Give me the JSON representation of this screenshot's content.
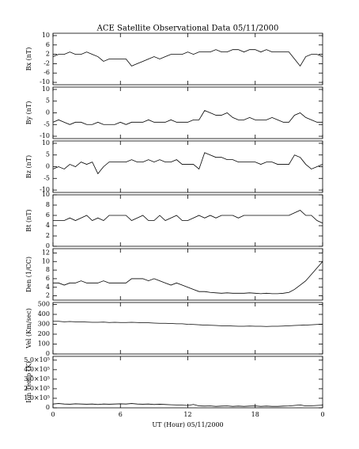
{
  "chart_data": [
    {
      "type": "line",
      "title": "ACE Satellite Observational Data   05/11/2000",
      "ylabel": "Bx (nT)",
      "color": "#000000",
      "x": [
        0,
        0.5,
        1,
        1.5,
        2,
        2.5,
        3,
        3.5,
        4,
        4.5,
        5,
        5.5,
        6,
        6.5,
        7,
        7.5,
        8,
        8.5,
        9,
        9.5,
        10,
        10.5,
        11,
        11.5,
        12,
        12.5,
        13,
        13.5,
        14,
        14.5,
        15,
        15.5,
        16,
        16.5,
        17,
        17.5,
        18,
        18.5,
        19,
        19.5,
        20,
        20.5,
        21,
        21.5,
        22,
        22.5,
        23,
        23.5,
        24
      ],
      "values": [
        1,
        2,
        2,
        3,
        2,
        2,
        3,
        2,
        1,
        -1,
        0,
        0,
        0,
        0,
        -3,
        -2,
        -1,
        0,
        1,
        0,
        1,
        2,
        2,
        2,
        3,
        2,
        3,
        3,
        3,
        4,
        3,
        3,
        4,
        4,
        3,
        4,
        4,
        3,
        4,
        3,
        3,
        3,
        3,
        0,
        -3,
        1,
        2,
        2,
        1
      ],
      "xlim": [
        0,
        24
      ],
      "xticks": [
        0,
        6,
        12,
        18,
        24
      ],
      "ylim": [
        -11,
        11
      ],
      "yticks": [
        -10,
        -6,
        -2,
        2,
        6,
        10
      ]
    },
    {
      "type": "line",
      "ylabel": "By (nT)",
      "color": "#000000",
      "x": [
        0,
        0.5,
        1,
        1.5,
        2,
        2.5,
        3,
        3.5,
        4,
        4.5,
        5,
        5.5,
        6,
        6.5,
        7,
        7.5,
        8,
        8.5,
        9,
        9.5,
        10,
        10.5,
        11,
        11.5,
        12,
        12.5,
        13,
        13.5,
        14,
        14.5,
        15,
        15.5,
        16,
        16.5,
        17,
        17.5,
        18,
        18.5,
        19,
        19.5,
        20,
        20.5,
        21,
        21.5,
        22,
        22.5,
        23,
        23.5,
        24
      ],
      "values": [
        -4,
        -3,
        -4,
        -5,
        -4,
        -4,
        -5,
        -5,
        -4,
        -5,
        -5,
        -5,
        -4,
        -5,
        -4,
        -4,
        -4,
        -3,
        -4,
        -4,
        -4,
        -3,
        -4,
        -4,
        -4,
        -3,
        -3,
        1,
        0,
        -1,
        -1,
        0,
        -2,
        -3,
        -3,
        -2,
        -3,
        -3,
        -3,
        -2,
        -3,
        -4,
        -4,
        -1,
        0,
        -2,
        -3,
        -4,
        -4
      ],
      "xlim": [
        0,
        24
      ],
      "xticks": [
        0,
        6,
        12,
        18,
        24
      ],
      "ylim": [
        -11,
        11
      ],
      "yticks": [
        -10,
        -5,
        0,
        5,
        10
      ]
    },
    {
      "type": "line",
      "ylabel": "Bz (nT)",
      "color": "#000000",
      "x": [
        0,
        0.5,
        1,
        1.5,
        2,
        2.5,
        3,
        3.5,
        4,
        4.5,
        5,
        5.5,
        6,
        6.5,
        7,
        7.5,
        8,
        8.5,
        9,
        9.5,
        10,
        10.5,
        11,
        11.5,
        12,
        12.5,
        13,
        13.5,
        14,
        14.5,
        15,
        15.5,
        16,
        16.5,
        17,
        17.5,
        18,
        18.5,
        19,
        19.5,
        20,
        20.5,
        21,
        21.5,
        22,
        22.5,
        23,
        23.5,
        24
      ],
      "values": [
        -1,
        0,
        -1,
        1,
        0,
        2,
        1,
        2,
        -3,
        0,
        2,
        2,
        2,
        2,
        3,
        2,
        2,
        3,
        2,
        3,
        2,
        2,
        3,
        1,
        1,
        1,
        -1,
        6,
        5,
        4,
        4,
        3,
        3,
        2,
        2,
        2,
        2,
        1,
        2,
        2,
        1,
        1,
        1,
        5,
        4,
        1,
        -1,
        0,
        1
      ],
      "xlim": [
        0,
        24
      ],
      "xticks": [
        0,
        6,
        12,
        18,
        24
      ],
      "ylim": [
        -11,
        11
      ],
      "yticks": [
        -10,
        -5,
        0,
        5,
        10
      ]
    },
    {
      "type": "line",
      "ylabel": "Bt (nT)",
      "color": "#000000",
      "x": [
        0,
        0.5,
        1,
        1.5,
        2,
        2.5,
        3,
        3.5,
        4,
        4.5,
        5,
        5.5,
        6,
        6.5,
        7,
        7.5,
        8,
        8.5,
        9,
        9.5,
        10,
        10.5,
        11,
        11.5,
        12,
        12.5,
        13,
        13.5,
        14,
        14.5,
        15,
        15.5,
        16,
        16.5,
        17,
        17.5,
        18,
        18.5,
        19,
        19.5,
        20,
        20.5,
        21,
        21.5,
        22,
        22.5,
        23,
        23.5,
        24
      ],
      "values": [
        5,
        5,
        5,
        5.5,
        5,
        5.5,
        6,
        5,
        5.5,
        5,
        6,
        6,
        6,
        6,
        5,
        5.5,
        6,
        5,
        5,
        6,
        5,
        5.5,
        6,
        5,
        5,
        5.5,
        6,
        5.5,
        6,
        5.5,
        6,
        6,
        6,
        5.5,
        6,
        6,
        6,
        6,
        6,
        6,
        6,
        6,
        6,
        6.5,
        7,
        6,
        6,
        5,
        4.5
      ],
      "xlim": [
        0,
        24
      ],
      "xticks": [
        0,
        6,
        12,
        18,
        24
      ],
      "ylim": [
        0,
        10
      ],
      "yticks": [
        0,
        2,
        4,
        6,
        8,
        10
      ]
    },
    {
      "type": "line",
      "ylabel": "Den (1/CC)",
      "color": "#000000",
      "x": [
        0,
        0.5,
        1,
        1.5,
        2,
        2.5,
        3,
        3.5,
        4,
        4.5,
        5,
        5.5,
        6,
        6.5,
        7,
        7.5,
        8,
        8.5,
        9,
        9.5,
        10,
        10.5,
        11,
        11.5,
        12,
        12.5,
        13,
        13.5,
        14,
        14.5,
        15,
        15.5,
        16,
        16.5,
        17,
        17.5,
        18,
        18.5,
        19,
        19.5,
        20,
        20.5,
        21,
        21.5,
        22,
        22.5,
        23,
        23.5,
        24
      ],
      "values": [
        5,
        5,
        4.5,
        5,
        5,
        5.5,
        5,
        5,
        5,
        5.5,
        5,
        5,
        5,
        5,
        6,
        6,
        6,
        5.5,
        6,
        5.5,
        5,
        4.5,
        5,
        4.5,
        4,
        3.5,
        3,
        3,
        2.8,
        2.7,
        2.6,
        2.7,
        2.6,
        2.6,
        2.6,
        2.7,
        2.6,
        2.5,
        2.6,
        2.5,
        2.5,
        2.6,
        2.8,
        3.5,
        4.5,
        5.5,
        7,
        8.5,
        10
      ],
      "xlim": [
        0,
        24
      ],
      "xticks": [
        0,
        6,
        12,
        18,
        24
      ],
      "ylim": [
        1,
        13
      ],
      "yticks": [
        2,
        4,
        6,
        8,
        10,
        12
      ]
    },
    {
      "type": "line",
      "ylabel": "Vel (Km/sec)",
      "color": "#000000",
      "x": [
        0,
        0.5,
        1,
        1.5,
        2,
        2.5,
        3,
        3.5,
        4,
        4.5,
        5,
        5.5,
        6,
        6.5,
        7,
        7.5,
        8,
        8.5,
        9,
        9.5,
        10,
        10.5,
        11,
        11.5,
        12,
        12.5,
        13,
        13.5,
        14,
        14.5,
        15,
        15.5,
        16,
        16.5,
        17,
        17.5,
        18,
        18.5,
        19,
        19.5,
        20,
        20.5,
        21,
        21.5,
        22,
        22.5,
        23,
        23.5,
        24
      ],
      "values": [
        330,
        330,
        325,
        328,
        325,
        325,
        322,
        320,
        320,
        322,
        318,
        320,
        318,
        318,
        320,
        318,
        315,
        315,
        312,
        310,
        310,
        308,
        305,
        305,
        300,
        298,
        295,
        292,
        290,
        288,
        285,
        285,
        282,
        280,
        280,
        282,
        280,
        280,
        278,
        280,
        280,
        282,
        285,
        288,
        290,
        292,
        295,
        298,
        300
      ],
      "xlim": [
        0,
        24
      ],
      "xticks": [
        0,
        6,
        12,
        18,
        24
      ],
      "ylim": [
        0,
        520
      ],
      "yticks": [
        0,
        100,
        200,
        300,
        400,
        500
      ]
    },
    {
      "type": "line",
      "ylabel": "Ion Temp (K)",
      "xlabel": "UT (Hour)   05/11/2000",
      "color": "#000000",
      "x": [
        0,
        0.5,
        1,
        1.5,
        2,
        2.5,
        3,
        3.5,
        4,
        4.5,
        5,
        5.5,
        6,
        6.5,
        7,
        7.5,
        8,
        8.5,
        9,
        9.5,
        10,
        10.5,
        11,
        11.5,
        12,
        12.5,
        13,
        13.5,
        14,
        14.5,
        15,
        15.5,
        16,
        16.5,
        17,
        17.5,
        18,
        18.5,
        19,
        19.5,
        20,
        20.5,
        21,
        21.5,
        22,
        22.5,
        23,
        23.5,
        24
      ],
      "values": [
        40000,
        45000,
        40000,
        38000,
        42000,
        40000,
        38000,
        40000,
        35000,
        40000,
        38000,
        40000,
        42000,
        40000,
        45000,
        40000,
        38000,
        40000,
        35000,
        38000,
        35000,
        32000,
        30000,
        28000,
        25000,
        35000,
        20000,
        18000,
        20000,
        15000,
        18000,
        20000,
        15000,
        18000,
        15000,
        18000,
        20000,
        15000,
        18000,
        15000,
        15000,
        18000,
        20000,
        25000,
        30000,
        20000,
        22000,
        25000,
        28000
      ],
      "xlim": [
        0,
        24
      ],
      "xticks": [
        0,
        6,
        12,
        18,
        {
          "value": 24,
          "label": "0"
        }
      ],
      "ylim": [
        0,
        540000
      ],
      "yticks": [
        0,
        {
          "value": 100000,
          "label": "1.0×10⁵"
        },
        {
          "value": 200000,
          "label": "2.0×10⁵"
        },
        {
          "value": 300000,
          "label": "3.0×10⁵"
        },
        {
          "value": 400000,
          "label": "4.0×10⁵"
        },
        {
          "value": 500000,
          "label": "5.0×10⁵"
        }
      ]
    }
  ]
}
